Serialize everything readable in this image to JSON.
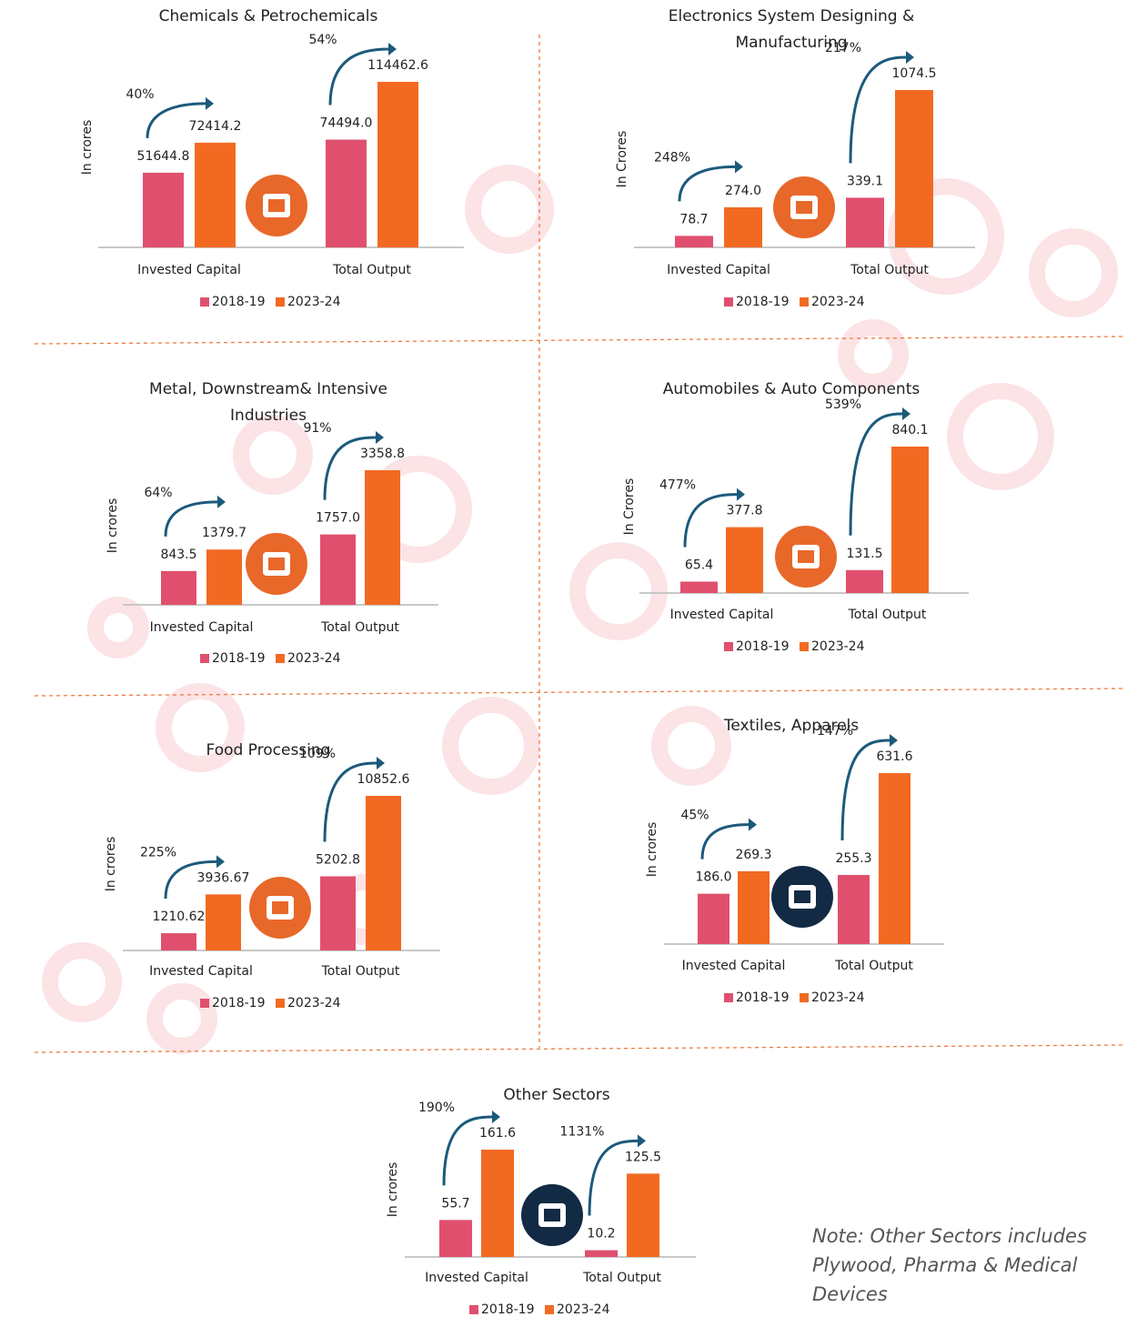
{
  "chart_data": [
    {
      "type": "bar",
      "title": "Chemicals & Petrochemicals",
      "y_label": "In crores",
      "categories": [
        "Invested Capital",
        "Total Output"
      ],
      "series": [
        {
          "name": "2018-19",
          "color": "#e0506e",
          "values": [
            51644.8,
            74494.0
          ],
          "value_labels": [
            "51644.8",
            "74494.0"
          ]
        },
        {
          "name": "2023-24",
          "color": "#f26a22",
          "values": [
            72414.2,
            114462.6
          ],
          "value_labels": [
            "72414.2",
            "114462.6"
          ]
        }
      ],
      "annotations": [
        "40%",
        "54%"
      ]
    },
    {
      "type": "bar",
      "title": "Electronics System Designing & Manufacturing",
      "y_label": "In Crores",
      "categories": [
        "Invested Capital",
        "Total Output"
      ],
      "series": [
        {
          "name": "2018-19",
          "color": "#e0506e",
          "values": [
            78.7,
            339.1
          ],
          "value_labels": [
            "78.7",
            "339.1"
          ]
        },
        {
          "name": "2023-24",
          "color": "#f26a22",
          "values": [
            274.0,
            1074.5
          ],
          "value_labels": [
            "274.0",
            "1074.5"
          ]
        }
      ],
      "annotations": [
        "248%",
        "217%"
      ]
    },
    {
      "type": "bar",
      "title": "Metal, Downstream& Intensive Industries",
      "y_label": "In crores",
      "categories": [
        "Invested Capital",
        "Total Output"
      ],
      "series": [
        {
          "name": "2018-19",
          "color": "#e0506e",
          "values": [
            843.5,
            1757.0
          ],
          "value_labels": [
            "843.5",
            "1757.0"
          ]
        },
        {
          "name": "2023-24",
          "color": "#f26a22",
          "values": [
            1379.7,
            3358.8
          ],
          "value_labels": [
            "1379.7",
            "3358.8"
          ]
        }
      ],
      "annotations": [
        "64%",
        "91%"
      ]
    },
    {
      "type": "bar",
      "title": "Automobiles & Auto Components",
      "y_label": "In Crores",
      "categories": [
        "Invested Capital",
        "Total Output"
      ],
      "series": [
        {
          "name": "2018-19",
          "color": "#e0506e",
          "values": [
            65.4,
            131.5
          ],
          "value_labels": [
            "65.4",
            "131.5"
          ]
        },
        {
          "name": "2023-24",
          "color": "#f26a22",
          "values": [
            377.8,
            840.1
          ],
          "value_labels": [
            "377.8",
            "840.1"
          ]
        }
      ],
      "annotations": [
        "477%",
        "539%"
      ]
    },
    {
      "type": "bar",
      "title": "Food Processing",
      "y_label": "In crores",
      "categories": [
        "Invested Capital",
        "Total Output"
      ],
      "series": [
        {
          "name": "2018-19",
          "color": "#e0506e",
          "values": [
            1210.62,
            5202.8
          ],
          "value_labels": [
            "1210.62",
            "5202.8"
          ]
        },
        {
          "name": "2023-24",
          "color": "#f26a22",
          "values": [
            3936.67,
            10852.6
          ],
          "value_labels": [
            "3936.67",
            "10852.6"
          ]
        }
      ],
      "annotations": [
        "225%",
        "109%"
      ]
    },
    {
      "type": "bar",
      "title": "Textiles, Apparels",
      "y_label": "In crores",
      "categories": [
        "Invested Capital",
        "Total Output"
      ],
      "series": [
        {
          "name": "2018-19",
          "color": "#e0506e",
          "values": [
            186.0,
            255.3
          ],
          "value_labels": [
            "186.0",
            "255.3"
          ]
        },
        {
          "name": "2023-24",
          "color": "#f26a22",
          "values": [
            269.3,
            631.6
          ],
          "value_labels": [
            "269.3",
            "631.6"
          ]
        }
      ],
      "annotations": [
        "45%",
        "147%"
      ]
    },
    {
      "type": "bar",
      "title": "Other Sectors",
      "y_label": "In crores",
      "categories": [
        "Invested Capital",
        "Total Output"
      ],
      "series": [
        {
          "name": "2018-19",
          "color": "#e0506e",
          "values": [
            55.7,
            10.2
          ],
          "value_labels": [
            "55.7",
            "10.2"
          ]
        },
        {
          "name": "2023-24",
          "color": "#f26a22",
          "values": [
            161.6,
            125.5
          ],
          "value_labels": [
            "161.6",
            "125.5"
          ]
        }
      ],
      "annotations": [
        "190%",
        "1131%"
      ]
    }
  ],
  "note": "Note: Other Sectors includes Plywood, Pharma & Medical Devices"
}
